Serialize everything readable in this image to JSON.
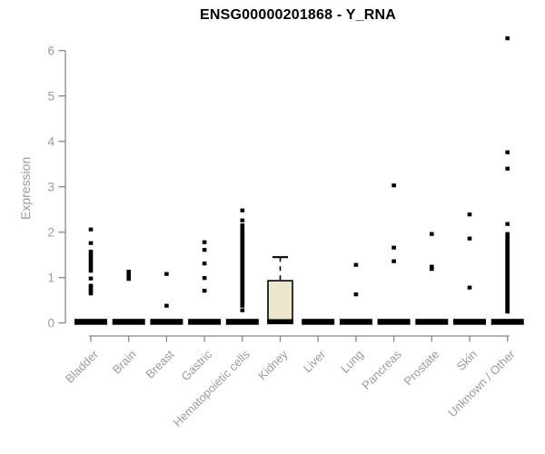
{
  "chart_data": {
    "type": "boxplot",
    "title": "ENSG00000201868 - Y_RNA",
    "ylabel": "Expression",
    "xlabel": "",
    "ylim": [
      0,
      6.4
    ],
    "yticks": [
      0,
      1,
      2,
      3,
      4,
      5,
      6
    ],
    "grid": false,
    "legend": "none",
    "categories": [
      "Bladder",
      "Brain",
      "Breast",
      "Gastric",
      "Hematopoietic cells",
      "Kidney",
      "Liver",
      "Lung",
      "Pancreas",
      "Prostate",
      "Skin",
      "Unknown / Other"
    ],
    "boxes": [
      {
        "category": "Bladder",
        "collapsed": true,
        "q1": 0,
        "median": 0,
        "q3": 0,
        "whisker_low": 0,
        "whisker_high": 0,
        "outliers": [
          2.06,
          1.76,
          1.57,
          1.5,
          1.43,
          1.36,
          1.29,
          1.22,
          1.15,
          0.98,
          0.82,
          0.76,
          0.7,
          0.65
        ]
      },
      {
        "category": "Brain",
        "collapsed": true,
        "q1": 0,
        "median": 0,
        "q3": 0,
        "whisker_low": 0,
        "whisker_high": 0,
        "outliers": [
          1.13,
          1.05,
          0.97
        ]
      },
      {
        "category": "Breast",
        "collapsed": true,
        "q1": 0,
        "median": 0,
        "q3": 0,
        "whisker_low": 0,
        "whisker_high": 0,
        "outliers": [
          1.08,
          0.38
        ]
      },
      {
        "category": "Gastric",
        "collapsed": true,
        "q1": 0,
        "median": 0,
        "q3": 0,
        "whisker_low": 0,
        "whisker_high": 0,
        "outliers": [
          1.78,
          1.61,
          1.31,
          0.99,
          0.71
        ]
      },
      {
        "category": "Hematopoietic cells",
        "collapsed": true,
        "q1": 0,
        "median": 0,
        "q3": 0,
        "whisker_low": 0,
        "whisker_high": 0,
        "outliers": [
          2.48,
          2.26,
          2.15,
          2.1,
          2.06,
          2.02,
          1.98,
          1.94,
          1.9,
          1.86,
          1.82,
          1.78,
          1.74,
          1.7,
          1.66,
          1.62,
          1.58,
          1.54,
          1.5,
          1.46,
          1.42,
          1.38,
          1.34,
          1.3,
          1.26,
          1.22,
          1.18,
          1.14,
          1.1,
          1.06,
          1.02,
          0.98,
          0.94,
          0.9,
          0.86,
          0.82,
          0.78,
          0.74,
          0.7,
          0.66,
          0.62,
          0.58,
          0.54,
          0.5,
          0.46,
          0.42,
          0.38,
          0.28
        ]
      },
      {
        "category": "Kidney",
        "collapsed": false,
        "q1": 0,
        "median": 0,
        "q3": 0.93,
        "whisker_low": 0,
        "whisker_high": 1.45,
        "outliers": []
      },
      {
        "category": "Liver",
        "collapsed": true,
        "q1": 0,
        "median": 0,
        "q3": 0,
        "whisker_low": 0,
        "whisker_high": 0,
        "outliers": []
      },
      {
        "category": "Lung",
        "collapsed": true,
        "q1": 0,
        "median": 0,
        "q3": 0,
        "whisker_low": 0,
        "whisker_high": 0,
        "outliers": [
          1.28,
          0.63
        ]
      },
      {
        "category": "Pancreas",
        "collapsed": true,
        "q1": 0,
        "median": 0,
        "q3": 0,
        "whisker_low": 0,
        "whisker_high": 0,
        "outliers": [
          3.03,
          1.66,
          1.36
        ]
      },
      {
        "category": "Prostate",
        "collapsed": true,
        "q1": 0,
        "median": 0,
        "q3": 0,
        "whisker_low": 0,
        "whisker_high": 0,
        "outliers": [
          1.96,
          1.24,
          1.19
        ]
      },
      {
        "category": "Skin",
        "collapsed": true,
        "q1": 0,
        "median": 0,
        "q3": 0,
        "whisker_low": 0,
        "whisker_high": 0,
        "outliers": [
          2.39,
          1.86,
          0.78
        ]
      },
      {
        "category": "Unknown / Other",
        "collapsed": true,
        "q1": 0,
        "median": 0,
        "q3": 0,
        "whisker_low": 0,
        "whisker_high": 0,
        "outliers": [
          6.27,
          3.76,
          3.4,
          2.18,
          1.96,
          1.92,
          1.88,
          1.84,
          1.8,
          1.76,
          1.72,
          1.68,
          1.64,
          1.6,
          1.56,
          1.52,
          1.48,
          1.44,
          1.4,
          1.36,
          1.32,
          1.28,
          1.24,
          1.2,
          1.16,
          1.12,
          1.08,
          1.04,
          1.0,
          0.96,
          0.92,
          0.88,
          0.84,
          0.8,
          0.76,
          0.72,
          0.68,
          0.64,
          0.6,
          0.56,
          0.52,
          0.48,
          0.44,
          0.4,
          0.36,
          0.32,
          0.28,
          0.25
        ]
      }
    ],
    "colors": {
      "title": "#000000",
      "axis_line": "#878787",
      "tick_text": "#9b9b9b",
      "box_fill": "#ece7cc",
      "box_border": "#000000",
      "median": "#000000",
      "outlier_point": "#000000",
      "background": "#ffffff"
    }
  }
}
